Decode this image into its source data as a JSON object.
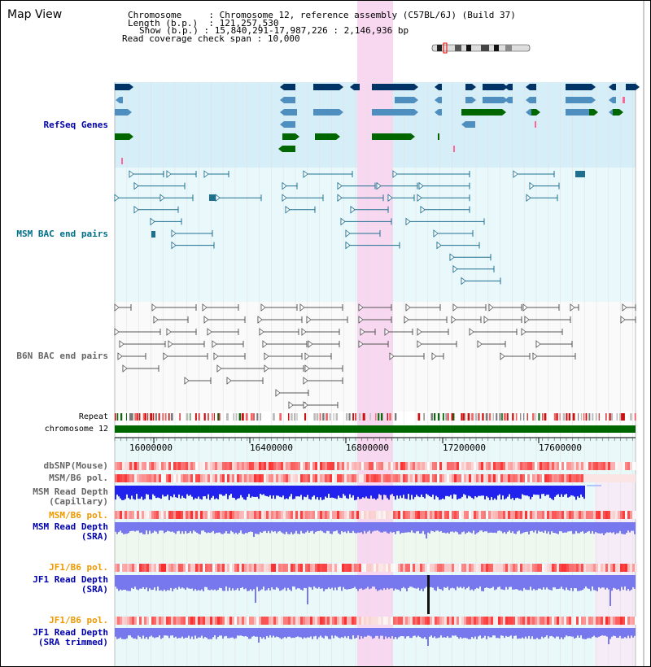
{
  "page_title": "Map View",
  "header": {
    "chromosome_key": "Chromosome",
    "chromosome_value": "Chromosome 12, reference assembly (C57BL/6J) (Build 37)",
    "length_key": "Length (b.p.)",
    "length_value": "121,257,530",
    "show_key": "Show (b.p.)",
    "show_value": "15,840,291-17,987,226 : 2,146,936 bp",
    "span_key": "Read coverage check span",
    "span_value": "10,000"
  },
  "tracks": {
    "refseq": "RefSeq Genes",
    "msm_bac": "MSM BAC end pairs",
    "b6n_bac": "B6N BAC end pairs",
    "repeat": "Repeat",
    "chromosome": "chromosome 12",
    "dbsnp": "dbSNP(Mouse)",
    "msm_pol_1": "MSM/B6 pol.",
    "msm_depth_cap_1": "MSM Read Depth",
    "msm_depth_cap_2": "(Capillary)",
    "msm_pol_2": "MSM/B6 pol.",
    "msm_depth_sra_1": "MSM Read Depth",
    "msm_depth_sra_2": "(SRA)",
    "jf1_pol_1": "JF1/B6 pol.",
    "jf1_depth_sra_1": "JF1 Read Depth",
    "jf1_depth_sra_2": "(SRA)",
    "jf1_pol_2": "JF1/B6 pol.",
    "jf1_depth_trim_1": "JF1 Read Depth",
    "jf1_depth_trim_2": "(SRA trimmed)"
  },
  "axis": {
    "ticks": [
      "16000000",
      "16400000",
      "16800000",
      "17200000",
      "17600000"
    ]
  },
  "colors": {
    "refseq_bg": "#d6eef8",
    "msm_bac_bg": "#e8f8fb",
    "highlight": "#f8d8f0",
    "gene_navy": "#003366",
    "gene_steel": "#4f8fbf",
    "gene_green": "#006600",
    "msm_line": "#1f6f8f",
    "b6n_line": "#555555",
    "depth_blue": "#2222ee",
    "depth_light": "#7777ee",
    "pol_red": "#ee2222",
    "label_blue": "#0000aa",
    "label_teal": "#006f88",
    "label_gray": "#666666",
    "label_orange": "#ee9900"
  }
}
